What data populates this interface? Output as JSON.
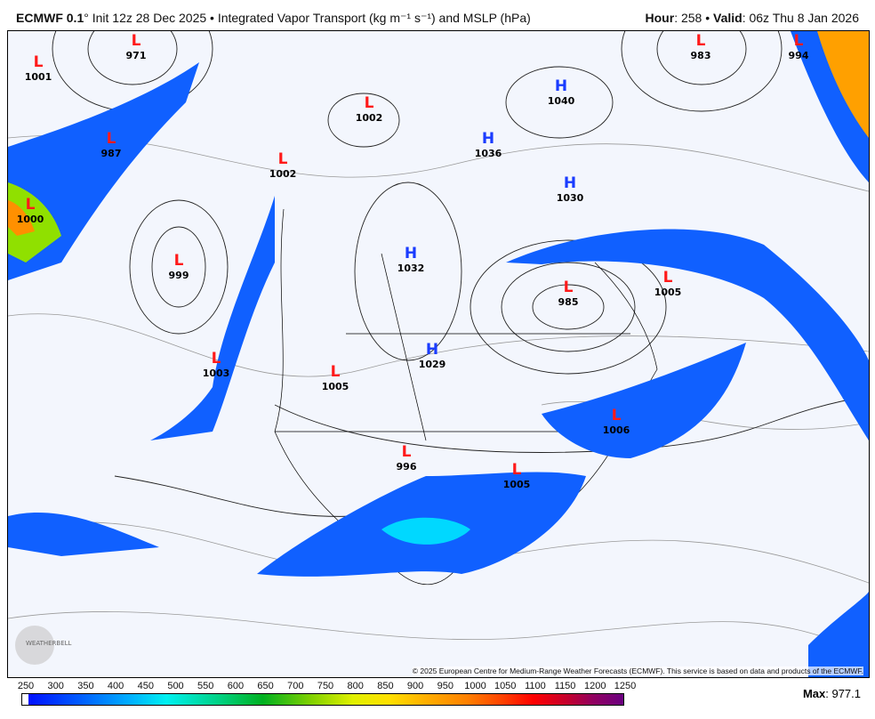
{
  "header": {
    "model": "ECMWF 0.1",
    "init": "° Init 12z 28 Dec 2025 • Integrated Vapor Transport (kg m⁻¹ s⁻¹) and MSLP (hPa)",
    "hour_label": "Hour",
    "hour": ": 258 • ",
    "valid_label": "Valid",
    "valid": ": 06z Thu 8 Jan 2026"
  },
  "map": {
    "copyright": "© 2025 European Centre for Medium-Range Weather Forecasts (ECMWF). This service is based on data and products of the ECMWF.",
    "logo_text": "WEATHERBELL",
    "lows": [
      {
        "p": "971"
      },
      {
        "p": "1001"
      },
      {
        "p": "983"
      },
      {
        "p": "994"
      },
      {
        "p": "987"
      },
      {
        "p": "1002"
      },
      {
        "p": "1002"
      },
      {
        "p": "1000"
      },
      {
        "p": "999"
      },
      {
        "p": "1003"
      },
      {
        "p": "1005"
      },
      {
        "p": "985"
      },
      {
        "p": "1005"
      },
      {
        "p": "1006"
      },
      {
        "p": "996"
      },
      {
        "p": "1005"
      }
    ],
    "highs": [
      {
        "p": "1040"
      },
      {
        "p": "1036"
      },
      {
        "p": "1030"
      },
      {
        "p": "1032"
      },
      {
        "p": "1029"
      }
    ],
    "low_color": "#ff1a1a",
    "high_color": "#1a3cff"
  },
  "colorbar": {
    "ticks": [
      "250",
      "300",
      "350",
      "400",
      "450",
      "500",
      "550",
      "600",
      "650",
      "700",
      "750",
      "800",
      "850",
      "900",
      "950",
      "1000",
      "1050",
      "1100",
      "1150",
      "1200",
      "1250"
    ],
    "max_label": "Max",
    "max_value": ": 977.1"
  }
}
